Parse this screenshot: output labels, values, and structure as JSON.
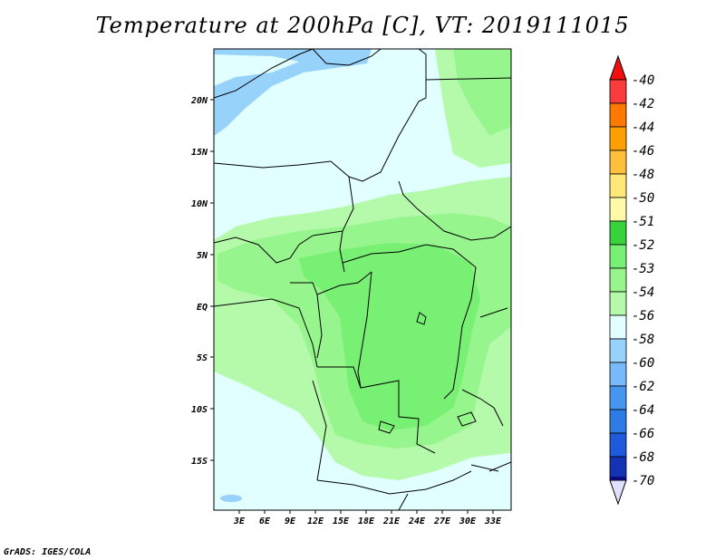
{
  "title": "Temperature at 200hPa [C], VT: 2019111015",
  "credit": "GrADS: IGES/COLA",
  "map": {
    "lat_labels": [
      "20N",
      "15N",
      "10N",
      "5N",
      "EQ",
      "5S",
      "10S",
      "15S"
    ],
    "lon_labels": [
      "3E",
      "6E",
      "9E",
      "12E",
      "15E",
      "18E",
      "21E",
      "24E",
      "27E",
      "30E",
      "33E"
    ],
    "field_colors": {
      "c53": "#96f58c",
      "c54": "#b4faaa",
      "c55": "#e1ffff",
      "c52": "#78f073",
      "c56": "#96d2fa"
    }
  },
  "colorbar": {
    "labels": [
      "-40",
      "-42",
      "-44",
      "-46",
      "-48",
      "-50",
      "-51",
      "-52",
      "-53",
      "-54",
      "-56",
      "-58",
      "-60",
      "-62",
      "-64",
      "-66",
      "-68",
      "-70"
    ],
    "colors": [
      "#f01010",
      "#fa3c3c",
      "#ff7800",
      "#ffa000",
      "#ffc03c",
      "#ffe878",
      "#fffaaa",
      "#37d23c",
      "#78f073",
      "#96f58c",
      "#b4faaa",
      "#e1ffff",
      "#96d2fa",
      "#78b9fa",
      "#4696f0",
      "#2d7ce6",
      "#1e5adc",
      "#1432b4",
      "#0a0a78",
      "#e1e1ff"
    ]
  }
}
